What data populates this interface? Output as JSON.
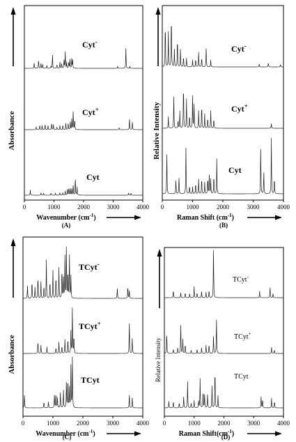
{
  "panels": [
    {
      "id": "A",
      "caption": "(A)",
      "xlabel_main": "Wavenumber (cm",
      "xlabel_exp": "-1",
      "xlabel_close": ")",
      "ylabel": "Absorbance",
      "ticks": [
        "0",
        "1000",
        "2000",
        "3000",
        "4000"
      ],
      "chart_data": {
        "type": "line",
        "xlabel": "Wavenumber (cm-1)",
        "ylabel": "Absorbance",
        "xlim": [
          0,
          4000
        ],
        "xticks": [
          0,
          1000,
          2000,
          3000,
          4000
        ],
        "series": [
          {
            "name": "Cyt-",
            "name_base": "Cyt",
            "name_sup": "-",
            "peaks": [
              [
                330,
                0.3
              ],
              [
                480,
                0.45
              ],
              [
                560,
                0.25
              ],
              [
                620,
                0.2
              ],
              [
                760,
                0.15
              ],
              [
                900,
                0.12
              ],
              [
                950,
                0.7
              ],
              [
                1100,
                0.2
              ],
              [
                1200,
                0.3
              ],
              [
                1260,
                0.25
              ],
              [
                1340,
                0.45
              ],
              [
                1380,
                0.8
              ],
              [
                1430,
                0.3
              ],
              [
                1500,
                0.35
              ],
              [
                1540,
                0.5
              ],
              [
                1600,
                0.45
              ],
              [
                1630,
                0.4
              ],
              [
                3150,
                0.12
              ],
              [
                3430,
                1.0
              ],
              [
                3560,
                0.1
              ]
            ]
          },
          {
            "name": "Cyt+",
            "name_base": "Cyt",
            "name_sup": "+",
            "peaks": [
              [
                400,
                0.15
              ],
              [
                520,
                0.25
              ],
              [
                600,
                0.2
              ],
              [
                700,
                0.3
              ],
              [
                800,
                0.2
              ],
              [
                920,
                0.35
              ],
              [
                980,
                0.25
              ],
              [
                1100,
                0.15
              ],
              [
                1200,
                0.2
              ],
              [
                1300,
                0.25
              ],
              [
                1400,
                0.3
              ],
              [
                1480,
                0.35
              ],
              [
                1550,
                0.4
              ],
              [
                1600,
                0.5
              ],
              [
                1650,
                0.95
              ],
              [
                1700,
                0.55
              ],
              [
                3200,
                0.1
              ],
              [
                3550,
                0.55
              ],
              [
                3650,
                0.4
              ]
            ]
          },
          {
            "name": "Cyt",
            "name_base": "Cyt",
            "name_sup": "",
            "peaks": [
              [
                200,
                0.25
              ],
              [
                560,
                0.12
              ],
              [
                650,
                0.1
              ],
              [
                900,
                0.12
              ],
              [
                1050,
                0.1
              ],
              [
                1200,
                0.12
              ],
              [
                1300,
                0.15
              ],
              [
                1380,
                0.2
              ],
              [
                1450,
                0.3
              ],
              [
                1500,
                0.4
              ],
              [
                1550,
                0.35
              ],
              [
                1600,
                0.3
              ],
              [
                1650,
                0.5
              ],
              [
                1720,
                0.95
              ],
              [
                1780,
                0.4
              ],
              [
                3520,
                0.12
              ],
              [
                3600,
                0.1
              ]
            ]
          }
        ]
      }
    },
    {
      "id": "B",
      "caption": "(B)",
      "xlabel_main": "Raman Shift (cm",
      "xlabel_exp": "-1",
      "xlabel_close": ")",
      "ylabel": "Relative Intensity",
      "ticks": [
        "0",
        "1000",
        "2000",
        "3000",
        "4000"
      ],
      "chart_data": {
        "type": "line",
        "xlabel": "Raman Shift (cm-1)",
        "ylabel": "Relative Intensity",
        "xlim": [
          0,
          4000
        ],
        "xticks": [
          0,
          1000,
          2000,
          3000,
          4000
        ],
        "series": [
          {
            "name": "Cyt-",
            "name_base": "Cyt",
            "name_sup": "-",
            "peaks": [
              [
                100,
                0.85
              ],
              [
                200,
                0.6
              ],
              [
                300,
                1.0
              ],
              [
                400,
                0.3
              ],
              [
                500,
                0.55
              ],
              [
                600,
                0.3
              ],
              [
                700,
                0.2
              ],
              [
                800,
                0.15
              ],
              [
                1000,
                0.12
              ],
              [
                1100,
                0.15
              ],
              [
                1200,
                0.25
              ],
              [
                1300,
                0.18
              ],
              [
                1450,
                0.35
              ],
              [
                1600,
                0.12
              ],
              [
                3200,
                0.05
              ],
              [
                3500,
                0.08
              ],
              [
                3900,
                0.05
              ]
            ]
          },
          {
            "name": "Cyt+",
            "name_base": "Cyt",
            "name_sup": "+",
            "peaks": [
              [
                200,
                0.2
              ],
              [
                380,
                0.55
              ],
              [
                520,
                0.15
              ],
              [
                580,
                0.3
              ],
              [
                700,
                0.85
              ],
              [
                800,
                0.5
              ],
              [
                900,
                0.25
              ],
              [
                1000,
                0.55
              ],
              [
                1050,
                0.45
              ],
              [
                1200,
                0.3
              ],
              [
                1300,
                0.45
              ],
              [
                1400,
                0.25
              ],
              [
                1500,
                0.2
              ],
              [
                1600,
                0.3
              ],
              [
                1700,
                0.18
              ],
              [
                3600,
                0.08
              ]
            ]
          },
          {
            "name": "Cyt",
            "name_base": "Cyt",
            "name_sup": "",
            "peaks": [
              [
                150,
                0.75
              ],
              [
                450,
                0.25
              ],
              [
                550,
                0.3
              ],
              [
                780,
                0.8
              ],
              [
                900,
                0.15
              ],
              [
                1000,
                0.12
              ],
              [
                1100,
                0.2
              ],
              [
                1200,
                0.25
              ],
              [
                1300,
                0.3
              ],
              [
                1400,
                0.2
              ],
              [
                1500,
                0.3
              ],
              [
                1550,
                0.35
              ],
              [
                1600,
                0.25
              ],
              [
                1700,
                0.35
              ],
              [
                1800,
                0.6
              ],
              [
                3250,
                0.85
              ],
              [
                3350,
                0.4
              ],
              [
                3600,
                0.95
              ],
              [
                3700,
                0.3
              ]
            ]
          }
        ]
      }
    },
    {
      "id": "C",
      "caption": "(C)",
      "xlabel_main": "Wavenumber (cm",
      "xlabel_exp": "-1",
      "xlabel_close": ")",
      "ylabel": "Absorbance",
      "ticks": [
        "0",
        "1000",
        "2000",
        "3000",
        "4000"
      ],
      "chart_data": {
        "type": "line",
        "xlabel": "Wavenumber (cm-1)",
        "ylabel": "Absorbance",
        "xlim": [
          0,
          4000
        ],
        "xticks": [
          0,
          1000,
          2000,
          3000,
          4000
        ],
        "series": [
          {
            "name": "TCyt-",
            "name_base": "TCyt",
            "name_sup": "-",
            "peaks": [
              [
                150,
                0.25
              ],
              [
                300,
                0.35
              ],
              [
                400,
                0.2
              ],
              [
                500,
                0.45
              ],
              [
                600,
                0.3
              ],
              [
                700,
                0.25
              ],
              [
                780,
                0.7
              ],
              [
                900,
                0.35
              ],
              [
                1000,
                0.5
              ],
              [
                1100,
                0.45
              ],
              [
                1200,
                0.55
              ],
              [
                1300,
                0.6
              ],
              [
                1350,
                0.4
              ],
              [
                1400,
                0.75
              ],
              [
                1450,
                1.0
              ],
              [
                1500,
                0.55
              ],
              [
                1550,
                0.85
              ],
              [
                1600,
                0.4
              ],
              [
                3150,
                0.2
              ],
              [
                3500,
                0.25
              ],
              [
                3550,
                0.15
              ]
            ]
          },
          {
            "name": "TCyt+",
            "name_base": "TCyt",
            "name_sup": "+",
            "peaks": [
              [
                500,
                0.25
              ],
              [
                600,
                0.15
              ],
              [
                800,
                0.12
              ],
              [
                1100,
                0.12
              ],
              [
                1200,
                0.2
              ],
              [
                1300,
                0.15
              ],
              [
                1400,
                0.25
              ],
              [
                1500,
                0.3
              ],
              [
                1600,
                0.4
              ],
              [
                1650,
                0.9
              ],
              [
                1700,
                0.35
              ],
              [
                3550,
                0.6
              ],
              [
                3650,
                0.3
              ]
            ]
          },
          {
            "name": "TCyt",
            "name_base": "TCyt",
            "name_sup": "",
            "peaks": [
              [
                50,
                0.25
              ],
              [
                700,
                0.12
              ],
              [
                850,
                0.12
              ],
              [
                1050,
                0.25
              ],
              [
                1100,
                0.3
              ],
              [
                1150,
                0.2
              ],
              [
                1250,
                0.3
              ],
              [
                1350,
                0.35
              ],
              [
                1450,
                0.5
              ],
              [
                1500,
                0.6
              ],
              [
                1550,
                0.4
              ],
              [
                1600,
                0.75
              ],
              [
                1650,
                1.0
              ],
              [
                3550,
                0.25
              ],
              [
                3650,
                0.2
              ]
            ]
          }
        ]
      }
    },
    {
      "id": "D",
      "caption": "(D)",
      "xlabel_main": "Raman Shift(cm",
      "xlabel_exp": "-1",
      "xlabel_close": ")",
      "ylabel": "Relative Intensity",
      "ticks": [
        "0",
        "1000",
        "2000",
        "3000",
        "4000"
      ],
      "chart_data": {
        "type": "line",
        "xlabel": "Raman Shift(cm-1)",
        "ylabel": "Relative Intensity",
        "xlim": [
          0,
          4000
        ],
        "xticks": [
          0,
          1000,
          2000,
          3000,
          4000
        ],
        "series": [
          {
            "name": "TCyt-",
            "name_base": "TCyt",
            "name_sup": "-",
            "peaks": [
              [
                300,
                0.15
              ],
              [
                550,
                0.1
              ],
              [
                700,
                0.1
              ],
              [
                850,
                0.08
              ],
              [
                1000,
                0.2
              ],
              [
                1100,
                0.1
              ],
              [
                1250,
                0.12
              ],
              [
                1400,
                0.1
              ],
              [
                1500,
                0.15
              ],
              [
                1650,
                0.95
              ],
              [
                3200,
                0.12
              ],
              [
                3550,
                0.2
              ],
              [
                3650,
                0.08
              ]
            ]
          },
          {
            "name": "TCyt+",
            "name_base": "TCyt",
            "name_sup": "+",
            "peaks": [
              [
                80,
                0.55
              ],
              [
                300,
                0.12
              ],
              [
                450,
                0.15
              ],
              [
                550,
                0.75
              ],
              [
                620,
                0.35
              ],
              [
                700,
                0.25
              ],
              [
                900,
                0.1
              ],
              [
                1100,
                0.12
              ],
              [
                1250,
                0.15
              ],
              [
                1400,
                0.2
              ],
              [
                1500,
                0.25
              ],
              [
                1650,
                0.45
              ],
              [
                1750,
                0.9
              ],
              [
                3600,
                0.15
              ],
              [
                3700,
                0.1
              ]
            ]
          },
          {
            "name": "TCyt",
            "name_base": "TCyt",
            "name_sup": "",
            "peaks": [
              [
                150,
                0.15
              ],
              [
                300,
                0.15
              ],
              [
                500,
                0.12
              ],
              [
                650,
                0.25
              ],
              [
                780,
                0.55
              ],
              [
                900,
                0.12
              ],
              [
                1000,
                0.15
              ],
              [
                1150,
                0.15
              ],
              [
                1200,
                0.6
              ],
              [
                1300,
                0.4
              ],
              [
                1350,
                0.3
              ],
              [
                1450,
                0.3
              ],
              [
                1600,
                0.45
              ],
              [
                1700,
                0.9
              ],
              [
                1800,
                0.25
              ],
              [
                3250,
                0.25
              ],
              [
                3300,
                0.2
              ],
              [
                3600,
                0.2
              ],
              [
                3700,
                0.15
              ]
            ]
          }
        ]
      }
    }
  ]
}
